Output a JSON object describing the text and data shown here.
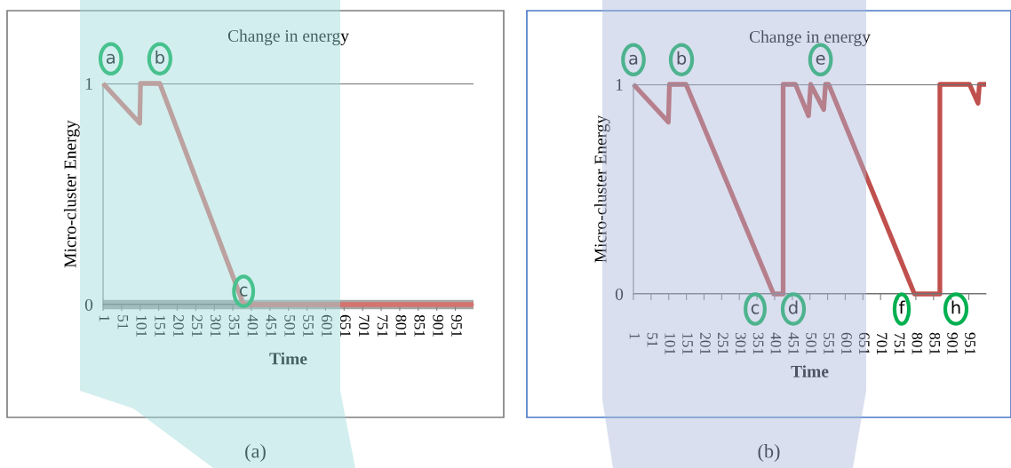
{
  "chart_data": [
    {
      "type": "line",
      "title": "Change in energy",
      "xlabel": "Time",
      "ylabel": "Micro-cluster Energy",
      "xlim": [
        1,
        1000
      ],
      "xticks": [
        1,
        51,
        101,
        151,
        201,
        251,
        301,
        351,
        401,
        451,
        501,
        551,
        601,
        651,
        701,
        751,
        801,
        851,
        901,
        951
      ],
      "ylim": [
        0,
        1
      ],
      "yticks": [
        0,
        1
      ],
      "grid": "y",
      "series": [
        {
          "color": "#a6a6a6",
          "x": [
            1,
            1000
          ],
          "values": [
            0,
            0
          ]
        },
        {
          "color": "#d4736f",
          "x": [
            1,
            100,
            102,
            154,
            380,
            1000
          ],
          "values": [
            1,
            0.82,
            1,
            1,
            0,
            0
          ]
        }
      ],
      "annotations": [
        {
          "text": "a",
          "x": 22,
          "y": 1
        },
        {
          "text": "b",
          "x": 154,
          "y": 1
        },
        {
          "text": "c",
          "x": 380,
          "y": 0.06
        },
        "(a)"
      ]
    },
    {
      "type": "line",
      "title": "Change in energy",
      "xlabel": "Time",
      "ylabel": "Micro-cluster Energy",
      "xlim": [
        1,
        1000
      ],
      "xticks": [
        1,
        51,
        101,
        151,
        201,
        251,
        301,
        351,
        401,
        451,
        501,
        551,
        601,
        651,
        701,
        751,
        801,
        851,
        901,
        951
      ],
      "ylim": [
        0,
        1
      ],
      "yticks": [
        0,
        1
      ],
      "grid": "y",
      "series": [
        {
          "color": "#c0504d",
          "x": [
            1,
            100,
            103,
            150,
            398,
            425,
            425,
            460,
            497,
            503,
            540,
            545,
            554,
            797,
            869,
            869,
            953,
            977,
            981,
            1000
          ],
          "values": [
            1,
            0.82,
            1,
            1,
            0,
            0,
            1,
            1,
            0.85,
            1,
            0.88,
            1,
            1,
            0,
            0,
            1,
            1,
            0.91,
            1,
            1
          ]
        }
      ],
      "annotations": [
        {
          "text": "a",
          "x": 1,
          "y": 1
        },
        {
          "text": "b",
          "x": 137,
          "y": 1
        },
        {
          "text": "e",
          "x": 531,
          "y": 1
        },
        "c",
        "d",
        "f",
        "h",
        "(b)"
      ]
    }
  ]
}
